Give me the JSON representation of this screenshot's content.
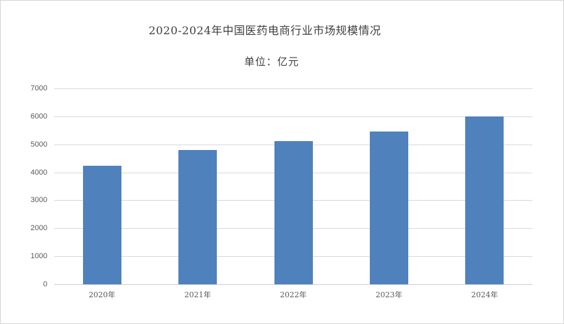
{
  "page": {
    "title": "2020-2024年中国医药电商行业市场规模情况",
    "subtitle": "单位：亿元"
  },
  "colors": {
    "bar": "#4F81BD",
    "gridline": "#D9D9D9",
    "axis_line": "#CFCFCF",
    "title_text": "#3F3F3F",
    "tick_text": "#595959",
    "background": "#FFFFFF",
    "border": "#D6D6D6"
  },
  "chart_data": {
    "type": "bar",
    "title": "2020-2024年中国医药电商行业市场规模情况",
    "subtitle": "单位：亿元",
    "unit": "亿元",
    "categories": [
      "2020年",
      "2021年",
      "2022年",
      "2023年",
      "2024年"
    ],
    "values": [
      4230,
      4790,
      5110,
      5460,
      6000
    ],
    "xlabel": "",
    "ylabel": "",
    "ylim": [
      0,
      7000
    ],
    "ytick_step": 1000,
    "yticks": [
      0,
      1000,
      2000,
      3000,
      4000,
      5000,
      6000,
      7000
    ],
    "grid": true,
    "legend_position": "none",
    "bar_color": "#4F81BD"
  }
}
